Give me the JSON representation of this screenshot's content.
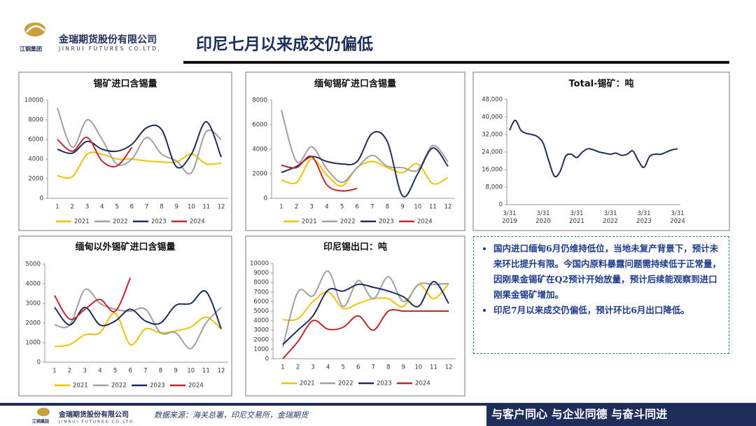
{
  "header": {
    "company": "金瑞期货股份有限公司",
    "company_en": "JINRUI FUTURES CO.LTD.",
    "group": "江铜集团",
    "title": "印尼七月以来成交仍偏低"
  },
  "chart_data": [
    {
      "type": "line",
      "title": "锡矿进口含锡量",
      "categories": [
        1,
        2,
        3,
        4,
        5,
        6,
        7,
        8,
        9,
        10,
        11,
        12
      ],
      "ylim": [
        0,
        10000
      ],
      "yticks": [
        0,
        2000,
        4000,
        6000,
        8000,
        10000
      ],
      "series": [
        {
          "name": "2021",
          "color": "#f2c200",
          "values": [
            2300,
            2200,
            4500,
            4500,
            4000,
            4000,
            3800,
            3700,
            3700,
            4500,
            3500,
            3600
          ]
        },
        {
          "name": "2022",
          "color": "#a0a0a0",
          "values": [
            9200,
            5200,
            8000,
            6000,
            3500,
            4000,
            6200,
            4500,
            3800,
            2600,
            6800,
            6000
          ]
        },
        {
          "name": "2023",
          "color": "#1f2d5a",
          "values": [
            5000,
            4600,
            5800,
            5000,
            4800,
            5500,
            7200,
            7000,
            3200,
            4500,
            7800,
            4200
          ]
        },
        {
          "name": "2024",
          "color": "#c0282d",
          "values": [
            6000,
            4800,
            6200,
            3800,
            3300,
            5200,
            null,
            null,
            null,
            null,
            null,
            null
          ]
        }
      ]
    },
    {
      "type": "line",
      "title": "缅甸锡矿进口含锡量",
      "categories": [
        1,
        2,
        3,
        4,
        5,
        6,
        7,
        8,
        9,
        10,
        11,
        12
      ],
      "ylim": [
        0,
        8000
      ],
      "yticks": [
        0,
        2000,
        4000,
        6000,
        8000
      ],
      "series": [
        {
          "name": "2021",
          "color": "#f2c200",
          "values": [
            1500,
            1300,
            3200,
            1900,
            1000,
            2500,
            3000,
            2500,
            2100,
            2800,
            1200,
            1700
          ]
        },
        {
          "name": "2022",
          "color": "#a0a0a0",
          "values": [
            7200,
            3000,
            4200,
            2400,
            1300,
            2500,
            3500,
            2600,
            2500,
            2300,
            4300,
            3000
          ]
        },
        {
          "name": "2023",
          "color": "#1f2d5a",
          "values": [
            2100,
            2600,
            3400,
            3000,
            2800,
            3000,
            5300,
            4600,
            200,
            2000,
            4100,
            2600
          ]
        },
        {
          "name": "2024",
          "color": "#c0282d",
          "values": [
            2700,
            2500,
            3400,
            1100,
            600,
            800,
            null,
            null,
            null,
            null,
            null,
            null
          ]
        }
      ]
    },
    {
      "type": "line",
      "title": "Total-锡矿：吨",
      "categories": [
        "3/31 2019",
        null,
        null,
        null,
        null,
        null,
        "3/31 2020",
        null,
        null,
        null,
        null,
        null,
        "3/31 2021",
        null,
        null,
        null,
        null,
        null,
        "3/31 2022",
        null,
        null,
        null,
        null,
        null,
        "3/31 2023",
        null,
        null,
        null,
        null,
        null,
        "3/31 2024"
      ],
      "ylim": [
        0,
        48000
      ],
      "yticks": [
        0,
        {
          "value": 8000,
          "label": "8,000"
        },
        {
          "value": 16000,
          "label": "16,000"
        },
        {
          "value": 24000,
          "label": "24,000"
        },
        {
          "value": 32000,
          "label": "32,000"
        },
        {
          "value": 40000,
          "label": "40,000"
        },
        {
          "value": 48000,
          "label": "48,000"
        }
      ],
      "series": [
        {
          "color": "#1f2d5a",
          "values": [
            34000,
            38500,
            34000,
            32500,
            32000,
            31000,
            28000,
            20000,
            13000,
            15000,
            22000,
            23000,
            21500,
            24000,
            25500,
            25000,
            24000,
            23500,
            23000,
            23500,
            22500,
            23000,
            24500,
            20000,
            17000,
            22000,
            23000,
            23000,
            24000,
            25000,
            25500
          ]
        }
      ]
    },
    {
      "type": "line",
      "title": "缅甸以外锡矿进口含锡量",
      "categories": [
        1,
        2,
        3,
        4,
        5,
        6,
        7,
        8,
        9,
        10,
        11,
        12
      ],
      "ylim": [
        0,
        5000
      ],
      "yticks": [
        0,
        1000,
        2000,
        3000,
        4000,
        5000
      ],
      "series": [
        {
          "name": "2021",
          "color": "#f2c200",
          "values": [
            800,
            900,
            1400,
            1500,
            2500,
            900,
            1700,
            1500,
            1600,
            1800,
            2300,
            1700
          ]
        },
        {
          "name": "2022",
          "color": "#a0a0a0",
          "values": [
            1900,
            1900,
            3700,
            3000,
            2700,
            2600,
            2700,
            1500,
            1500,
            700,
            2000,
            2800
          ]
        },
        {
          "name": "2023",
          "color": "#1f2d5a",
          "values": [
            2800,
            1900,
            2800,
            1900,
            2100,
            2700,
            2100,
            2000,
            2900,
            3000,
            3600,
            1700
          ]
        },
        {
          "name": "2024",
          "color": "#c0282d",
          "values": [
            3400,
            2200,
            2700,
            3200,
            2600,
            4300,
            null,
            null,
            null,
            null,
            null,
            null
          ]
        }
      ]
    },
    {
      "type": "line",
      "title": "印尼锡出口：吨",
      "categories": [
        1,
        2,
        3,
        4,
        5,
        6,
        7,
        8,
        9,
        10,
        11,
        12
      ],
      "ylim": [
        0,
        10000
      ],
      "yticks": [
        0,
        1000,
        2000,
        3000,
        4000,
        5000,
        6000,
        7000,
        8000,
        9000,
        10000
      ],
      "series": [
        {
          "name": "2021",
          "color": "#f2c200",
          "values": [
            4100,
            4200,
            6000,
            7000,
            5300,
            5800,
            6300,
            6300,
            5500,
            7800,
            6300,
            7900
          ]
        },
        {
          "name": "2022",
          "color": "#a0a0a0",
          "values": [
            1200,
            7000,
            6600,
            9200,
            5500,
            8200,
            6300,
            8600,
            6000,
            7800,
            7800,
            7900
          ]
        },
        {
          "name": "2023",
          "color": "#1f2d5a",
          "values": [
            1500,
            3000,
            4500,
            7200,
            7100,
            7800,
            7500,
            7100,
            6500,
            5500,
            8100,
            5800
          ]
        },
        {
          "name": "2024",
          "color": "#c0282d",
          "values": [
            0,
            1800,
            4000,
            3100,
            3300,
            4500,
            3000,
            5000,
            5000,
            5000,
            5000,
            5000
          ]
        }
      ]
    }
  ],
  "notes": [
    "国内进口缅甸6月仍维持低位，当地未复产背景下，预计未来环比提升有限。今国内原料暴露问题需持续低于正常量，因刚果金锡矿在Q2预计开始放量，预计后续能观察到进口刚果金锡矿增加。",
    "印尼7月以来成交仍偏低，预计环比6月出口降低。"
  ],
  "footer": {
    "source": "数据来源：海关总署，印尼交易所，金瑞期货",
    "slogan": "与客户同心 与企业同德 与奋斗同进"
  }
}
